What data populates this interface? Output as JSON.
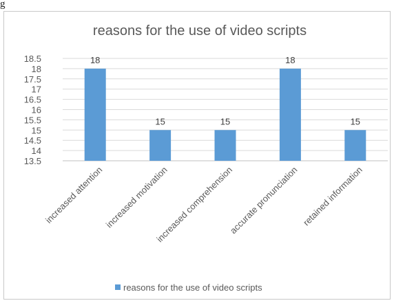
{
  "caption": "g",
  "accent_color": "#5b9bd5",
  "chart_data": {
    "type": "bar",
    "title": "reasons for the use of video scripts",
    "categories": [
      "increased attention",
      "increased motivation",
      "increased comprehension",
      "accurate pronunciation",
      "retained information"
    ],
    "series": [
      {
        "name": "reasons for the use of video scripts",
        "values": [
          18,
          15,
          15,
          18,
          15
        ]
      }
    ],
    "data_labels": [
      "18",
      "15",
      "15",
      "18",
      "15"
    ],
    "ylim": [
      13.5,
      18.5
    ],
    "yticks": [
      "18.5",
      "18",
      "17.5",
      "17",
      "16.5",
      "16",
      "15.5",
      "15",
      "14.5",
      "14",
      "13.5"
    ],
    "xlabel": "",
    "ylabel": "",
    "grid": true,
    "legend": "bottom"
  }
}
